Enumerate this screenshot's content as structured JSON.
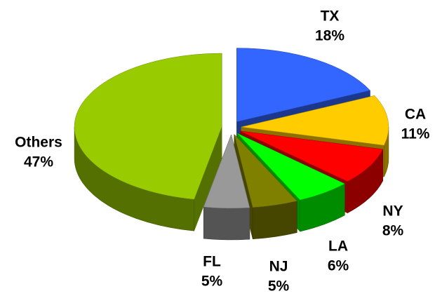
{
  "chart_data": {
    "type": "pie3d",
    "categories": [
      "TX",
      "CA",
      "NY",
      "LA",
      "NJ",
      "FL",
      "Others"
    ],
    "values": [
      18,
      11,
      8,
      6,
      5,
      5,
      47
    ],
    "value_labels": [
      "18%",
      "11%",
      "8%",
      "6%",
      "5%",
      "5%",
      "47%"
    ],
    "colors": [
      "#3366ff",
      "#ffcc00",
      "#ff0000",
      "#00ff00",
      "#808000",
      "#999999",
      "#99cc00"
    ]
  }
}
